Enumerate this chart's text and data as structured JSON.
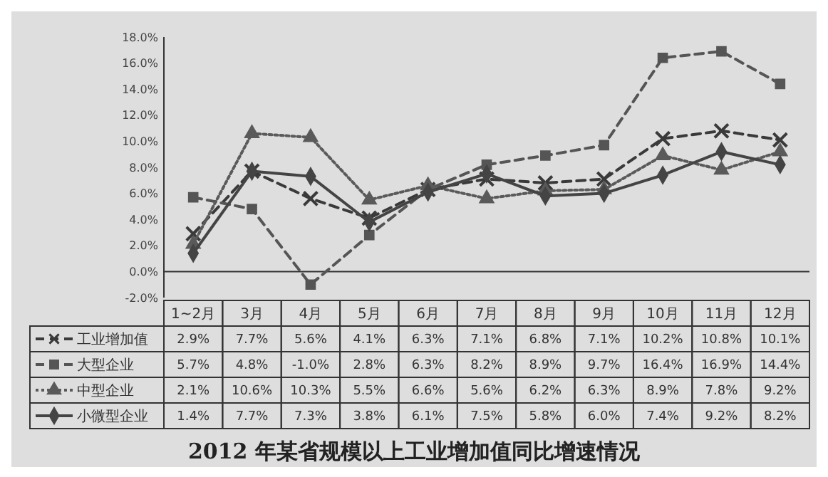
{
  "chart_data": {
    "type": "line",
    "title": "2012 年某省规模以上工业增加值同比增速情况",
    "categories": [
      "1~2月",
      "3月",
      "4月",
      "5月",
      "6月",
      "7月",
      "8月",
      "9月",
      "10月",
      "11月",
      "12月"
    ],
    "ylim": [
      -2,
      18
    ],
    "yticks": [
      {
        "value": -2,
        "label": "-2.0%"
      },
      {
        "value": 0,
        "label": "0.0%"
      },
      {
        "value": 2,
        "label": "2.0%"
      },
      {
        "value": 4,
        "label": "4.0%"
      },
      {
        "value": 6,
        "label": "6.0%"
      },
      {
        "value": 8,
        "label": "8.0%"
      },
      {
        "value": 10,
        "label": "10.0%"
      },
      {
        "value": 12,
        "label": "12.0%"
      },
      {
        "value": 14,
        "label": "14.0%"
      },
      {
        "value": 16,
        "label": "16.0%"
      },
      {
        "value": 18,
        "label": "18.0%"
      }
    ],
    "legend": "bottom left",
    "series": [
      {
        "name": "工业增加值",
        "color": "#3a3a3a",
        "marker": "cross",
        "line_style": "dashed",
        "values": [
          2.9,
          7.7,
          5.6,
          4.1,
          6.3,
          7.1,
          6.8,
          7.1,
          10.2,
          10.8,
          10.1
        ],
        "value_labels": [
          "2.9%",
          "7.7%",
          "5.6%",
          "4.1%",
          "6.3%",
          "7.1%",
          "6.8%",
          "7.1%",
          "10.2%",
          "10.8%",
          "10.1%"
        ]
      },
      {
        "name": "大型企业",
        "color": "#555555",
        "marker": "square",
        "line_style": "dashed",
        "values": [
          5.7,
          4.8,
          -1.0,
          2.8,
          6.3,
          8.2,
          8.9,
          9.7,
          16.4,
          16.9,
          14.4
        ],
        "value_labels": [
          "5.7%",
          "4.8%",
          "-1.0%",
          "2.8%",
          "6.3%",
          "8.2%",
          "8.9%",
          "9.7%",
          "16.4%",
          "16.9%",
          "14.4%"
        ]
      },
      {
        "name": "中型企业",
        "color": "#5a5a5a",
        "marker": "triangle",
        "line_style": "dotted",
        "values": [
          2.1,
          10.6,
          10.3,
          5.5,
          6.6,
          5.6,
          6.2,
          6.3,
          8.9,
          7.8,
          9.2
        ],
        "value_labels": [
          "2.1%",
          "10.6%",
          "10.3%",
          "5.5%",
          "6.6%",
          "5.6%",
          "6.2%",
          "6.3%",
          "8.9%",
          "7.8%",
          "9.2%"
        ]
      },
      {
        "name": "小微型企业",
        "color": "#444444",
        "marker": "diamond",
        "line_style": "solid",
        "values": [
          1.4,
          7.7,
          7.3,
          3.8,
          6.1,
          7.5,
          5.8,
          6.0,
          7.4,
          9.2,
          8.2
        ],
        "value_labels": [
          "1.4%",
          "7.7%",
          "7.3%",
          "3.8%",
          "6.1%",
          "7.5%",
          "5.8%",
          "6.0%",
          "7.4%",
          "9.2%",
          "8.2%"
        ]
      }
    ]
  }
}
